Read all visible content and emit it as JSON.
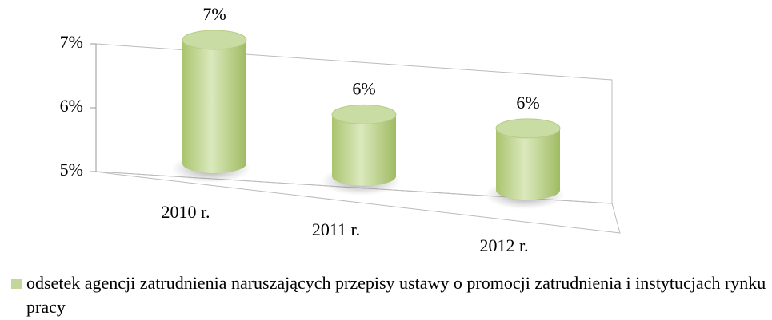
{
  "chart_data": {
    "type": "bar",
    "categories": [
      "2010 r.",
      "2011 r.",
      "2012 r."
    ],
    "series": [
      {
        "name": "odsetek agencji zatrudnienia naruszających przepisy ustawy o promocji zatrudnienia i instytucjach rynku pracy",
        "color": "#c3d69b",
        "values": [
          7,
          6,
          6
        ],
        "value_labels": [
          "7%",
          "6%",
          "6%"
        ]
      }
    ],
    "ylim": [
      5,
      7
    ],
    "yticks": [
      {
        "value": 5,
        "label": "5%"
      },
      {
        "value": 6,
        "label": "6%"
      },
      {
        "value": 7,
        "label": "7%"
      }
    ],
    "grid": false,
    "legend": "bottom"
  }
}
